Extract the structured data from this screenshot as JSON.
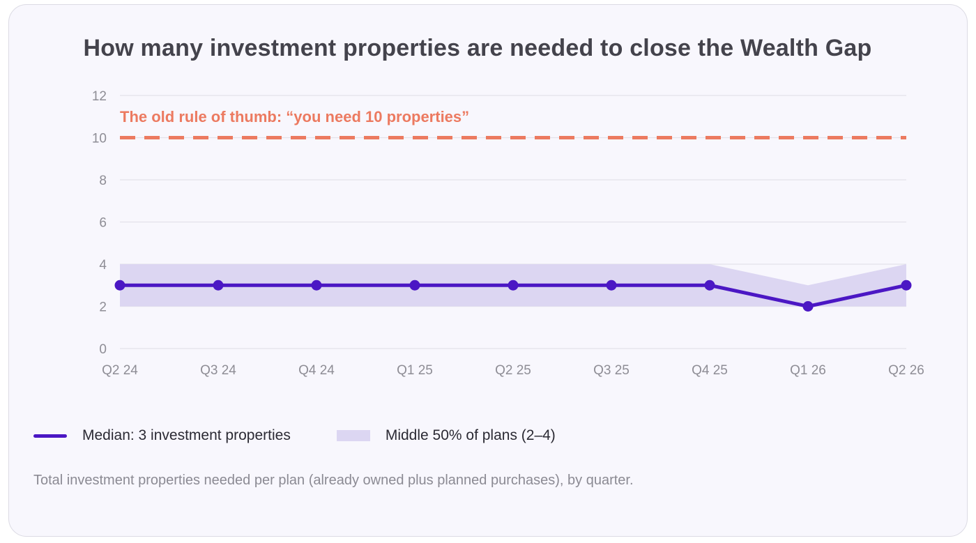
{
  "chart_data": {
    "type": "line",
    "title": "How many investment properties are needed to close the Wealth Gap",
    "categories": [
      "Q2 24",
      "Q3 24",
      "Q4 24",
      "Q1 25",
      "Q2 25",
      "Q3 25",
      "Q4 25",
      "Q1 26",
      "Q2 26"
    ],
    "series": [
      {
        "name": "Median: 3 investment properties",
        "type": "line",
        "values": [
          3,
          3,
          3,
          3,
          3,
          3,
          3,
          2,
          3
        ]
      },
      {
        "name": "Middle 50% of plans (2–4)",
        "type": "band",
        "low": [
          2,
          2,
          2,
          2,
          2,
          2,
          2,
          2,
          2
        ],
        "high": [
          4,
          4,
          4,
          4,
          4,
          4,
          4,
          3,
          4
        ]
      }
    ],
    "reference_line": {
      "value": 10,
      "label": "The old rule of thumb: “you need 10 properties”",
      "style": "dashed"
    },
    "ylim": [
      0,
      12
    ],
    "yticks": [
      "0",
      "2",
      "4",
      "6",
      "8",
      "10",
      "12"
    ],
    "grid": true,
    "legend_position": "bottom-left",
    "caption": "Total investment properties needed per plan (already owned plus planned purchases), by quarter.",
    "colors": {
      "median": "#4b17c4",
      "band": "#dcd6f2",
      "reference": "#ec7a60",
      "grid": "#e3e2ea",
      "axis_text": "#8e8d95"
    }
  }
}
